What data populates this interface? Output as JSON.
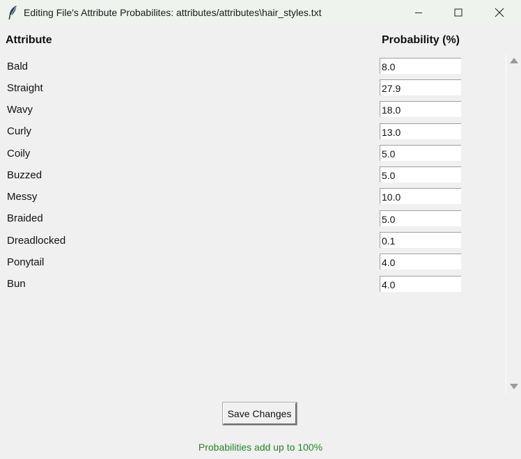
{
  "window": {
    "title": "Editing File's Attribute Probabilites: attributes/attributes\\hair_styles.txt",
    "icon": "feather-icon"
  },
  "header": {
    "attribute_label": "Attribute",
    "probability_label": "Probability (%)"
  },
  "rows": [
    {
      "label": "Bald",
      "value": "8.0"
    },
    {
      "label": "Straight",
      "value": "27.9"
    },
    {
      "label": "Wavy",
      "value": "18.0"
    },
    {
      "label": "Curly",
      "value": "13.0"
    },
    {
      "label": "Coily",
      "value": "5.0"
    },
    {
      "label": "Buzzed",
      "value": "5.0"
    },
    {
      "label": "Messy",
      "value": "10.0"
    },
    {
      "label": "Braided",
      "value": "5.0"
    },
    {
      "label": "Dreadlocked",
      "value": "0.1"
    },
    {
      "label": "Ponytail",
      "value": "4.0"
    },
    {
      "label": "Bun",
      "value": "4.0"
    }
  ],
  "actions": {
    "save_label": "Save Changes"
  },
  "status": {
    "message": "Probabilities add up to 100%",
    "color": "#1f8a1f"
  }
}
